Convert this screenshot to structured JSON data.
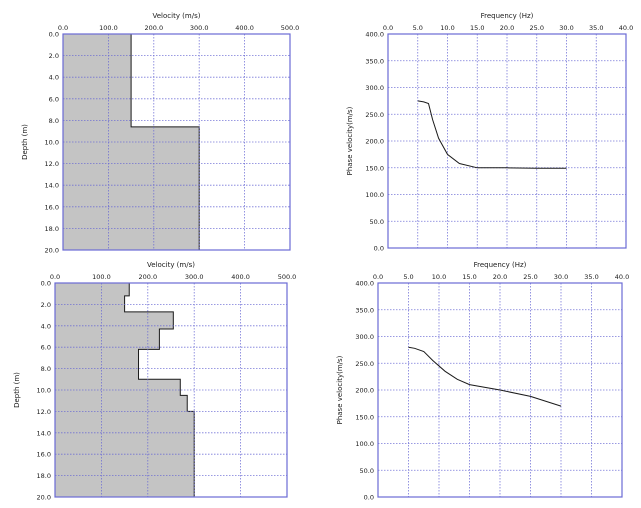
{
  "chart_data": [
    {
      "type": "area",
      "panel": "top-left",
      "xlabel": "Velocity (m/s)",
      "ylabel": "Depth (m)",
      "xlim": [
        0,
        500
      ],
      "ylim": [
        0,
        20
      ],
      "y_inverted": true,
      "x_axis_position": "top",
      "grid": true,
      "xticks": [
        "0.0",
        "100.0",
        "200.0",
        "300.0",
        "400.0",
        "500.0"
      ],
      "yticks": [
        "0.0",
        "2.0",
        "4.0",
        "6.0",
        "8.0",
        "10.0",
        "12.0",
        "14.0",
        "16.0",
        "18.0",
        "20.0"
      ],
      "profile": [
        {
          "depth_top": 0,
          "depth_bottom": 8.6,
          "velocity": 150
        },
        {
          "depth_top": 8.6,
          "depth_bottom": 20,
          "velocity": 300
        }
      ]
    },
    {
      "type": "line",
      "panel": "top-right",
      "xlabel": "Frequency (Hz)",
      "ylabel": "Phase velocity(m/s)",
      "xlim": [
        0,
        40
      ],
      "ylim": [
        0,
        400
      ],
      "x_axis_position": "top",
      "grid": true,
      "xticks": [
        "0.0",
        "5.0",
        "10.0",
        "15.0",
        "20.0",
        "25.0",
        "30.0",
        "35.0",
        "40.0"
      ],
      "yticks": [
        "0.0",
        "50.0",
        "100.0",
        "150.0",
        "200.0",
        "250.0",
        "300.0",
        "350.0",
        "400.0"
      ],
      "x": [
        5,
        6,
        6.8,
        7.5,
        8.5,
        10,
        12,
        15,
        20,
        25,
        30
      ],
      "y": [
        275,
        273,
        270,
        240,
        205,
        175,
        158,
        150,
        150,
        149,
        149
      ]
    },
    {
      "type": "area",
      "panel": "bottom-left",
      "xlabel": "Velocity (m/s)",
      "ylabel": "Depth (m)",
      "xlim": [
        0,
        500
      ],
      "ylim": [
        0,
        20
      ],
      "y_inverted": true,
      "x_axis_position": "top",
      "grid": true,
      "xticks": [
        "0.0",
        "100.0",
        "200.0",
        "300.0",
        "400.0",
        "500.0"
      ],
      "yticks": [
        "0.0",
        "2.0",
        "4.0",
        "6.0",
        "8.0",
        "10.0",
        "12.0",
        "14.0",
        "16.0",
        "18.0",
        "20.0"
      ],
      "profile": [
        {
          "depth_top": 0,
          "depth_bottom": 1.2,
          "velocity": 160
        },
        {
          "depth_top": 1.2,
          "depth_bottom": 2.7,
          "velocity": 150
        },
        {
          "depth_top": 2.7,
          "depth_bottom": 4.3,
          "velocity": 255
        },
        {
          "depth_top": 4.3,
          "depth_bottom": 6.2,
          "velocity": 225
        },
        {
          "depth_top": 6.2,
          "depth_bottom": 9.0,
          "velocity": 180
        },
        {
          "depth_top": 9.0,
          "depth_bottom": 10.5,
          "velocity": 270
        },
        {
          "depth_top": 10.5,
          "depth_bottom": 12.0,
          "velocity": 285
        },
        {
          "depth_top": 12.0,
          "depth_bottom": 20.0,
          "velocity": 300
        }
      ]
    },
    {
      "type": "line",
      "panel": "bottom-right",
      "xlabel": "Frequency (Hz)",
      "ylabel": "Phase velocity(m/s)",
      "xlim": [
        0,
        40
      ],
      "ylim": [
        0,
        400
      ],
      "x_axis_position": "top",
      "grid": true,
      "xticks": [
        "0.0",
        "5.0",
        "10.0",
        "15.0",
        "20.0",
        "25.0",
        "30.0",
        "35.0",
        "40.0"
      ],
      "yticks": [
        "0.0",
        "50.0",
        "100.0",
        "150.0",
        "200.0",
        "250.0",
        "300.0",
        "350.0",
        "400.0"
      ],
      "x": [
        5,
        6,
        7.5,
        9,
        11,
        13,
        15,
        20,
        25,
        30
      ],
      "y": [
        280,
        278,
        272,
        255,
        235,
        220,
        210,
        200,
        188,
        170
      ]
    }
  ],
  "style": {
    "frame_color": "#6a6ad4",
    "grid_color": "#6a6ad4",
    "fill_color": "#c4c4c4",
    "line_color": "#1a1a1a"
  }
}
